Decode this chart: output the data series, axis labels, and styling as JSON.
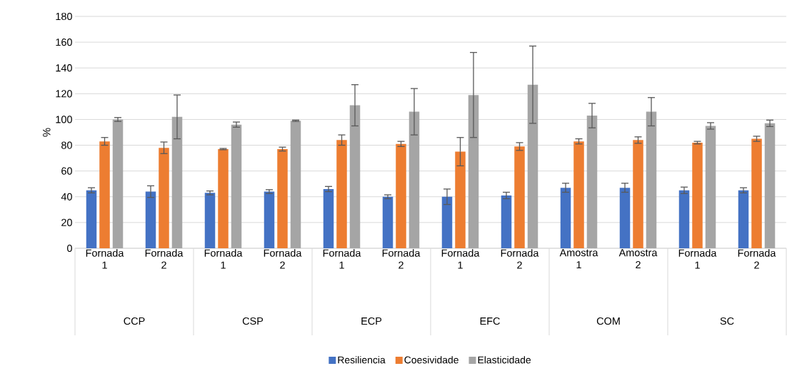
{
  "chart_data": {
    "type": "bar",
    "ylabel": "%",
    "categories": [
      "Fornada 1",
      "Fornada 2",
      "Fornada 1",
      "Fornada 2",
      "Fornada 1",
      "Fornada 2",
      "Fornada 1",
      "Fornada 2",
      "Amostra 1",
      "Amostra 2",
      "Fornada 1",
      "Fornada 2"
    ],
    "annotations": [
      "CCP",
      "CSP",
      "ECP",
      "EFC",
      "COM",
      "SC"
    ],
    "series": [
      {
        "name": "Resiliencia",
        "color": "#4472c4",
        "values": [
          45,
          44,
          43,
          44,
          46,
          40,
          40,
          41,
          47,
          47,
          45,
          45
        ],
        "errors": [
          2,
          4.5,
          1.5,
          1.5,
          2,
          1.5,
          6,
          2.5,
          3.5,
          3.5,
          2.5,
          2
        ]
      },
      {
        "name": "Coesividade",
        "color": "#ed7d31",
        "values": [
          83,
          78,
          77,
          77,
          84,
          81,
          75,
          79,
          83,
          84,
          82,
          85
        ],
        "errors": [
          3,
          4.5,
          0.5,
          1.5,
          4,
          2,
          11,
          3,
          2,
          2.5,
          1,
          2
        ]
      },
      {
        "name": "Elasticidade",
        "color": "#a5a5a5",
        "values": [
          100,
          102,
          96,
          99,
          111,
          106,
          119,
          127,
          103,
          106,
          95,
          97
        ],
        "errors": [
          1.5,
          17,
          2,
          0.5,
          16,
          18,
          33,
          30,
          9.5,
          11,
          2.5,
          2.5
        ]
      }
    ],
    "ylim": [
      0,
      180
    ],
    "yticks": [
      0,
      20,
      40,
      60,
      80,
      100,
      120,
      140,
      160,
      180
    ],
    "grid": "y",
    "legend": "bottom"
  }
}
